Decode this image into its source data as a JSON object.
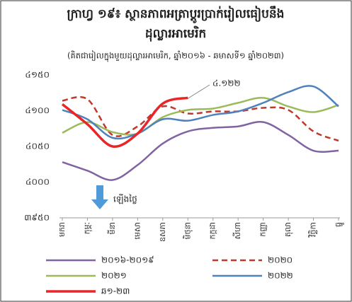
{
  "chart_data": {
    "type": "line",
    "title": "ក្រាហ្វ ១៩៖ ស្ថានភាពអត្រាប្តូរប្រាក់រៀលធៀបនឹង",
    "title_line2": "ដុល្លារអាមេរិក",
    "subtitle": "(គិតជារៀលក្នុងមួយដុល្លារអាមេរិក, ឆ្នាំ២០១៦ - ឆមាសទី១ ឆ្នាំ២០២៣)",
    "annotations": [
      "៤.១២២",
      "ឡើងថ្លៃ"
    ],
    "categories": [
      "មករា",
      "កុម្ភៈ",
      "មីនា",
      "មេសា",
      "ឧសភា",
      "មិថុនា",
      "កក្កដា",
      "សីហា",
      "កញ្ញា",
      "តុលា",
      "វិច្ឆិកា",
      "ធ្នូ"
    ],
    "series": [
      {
        "name": "២០១៦-២០១៩",
        "color": "#8064a2",
        "dash": false,
        "values": [
          4028,
          4016,
          4003,
          4024,
          4054,
          4071,
          4076,
          4078,
          4084,
          4066,
          4044,
          4044
        ]
      },
      {
        "name": "២០២០",
        "color": "#c0392b",
        "dash": true,
        "values": [
          4114,
          4116,
          4066,
          4078,
          4106,
          4096,
          4099,
          4099,
          4104,
          4101,
          4071,
          4058
        ]
      },
      {
        "name": "២០២១",
        "color": "#9bbb59",
        "dash": false,
        "values": [
          4069,
          4084,
          4070,
          4068,
          4091,
          4101,
          4103,
          4111,
          4118,
          4106,
          4098,
          4108
        ]
      },
      {
        "name": "២០២២",
        "color": "#4f81bd",
        "dash": false,
        "values": [
          4101,
          4088,
          4062,
          4068,
          4088,
          4086,
          4094,
          4099,
          4111,
          4126,
          4134,
          4106
        ]
      },
      {
        "name": "ឆ១-២៣",
        "color": "#e8262a",
        "dash": false,
        "values": [
          4109,
          4081,
          4050,
          4068,
          4110,
          4118,
          null,
          null,
          null,
          null,
          null,
          null
        ]
      }
    ],
    "ylim": [
      3950,
      4150
    ],
    "yticks": [
      {
        "value": 3950,
        "label": "៣៩៥០"
      },
      {
        "value": 4000,
        "label": "៤០០០"
      },
      {
        "value": 4050,
        "label": "៤០៥០"
      },
      {
        "value": 4100,
        "label": "៤១០០"
      },
      {
        "value": 4150,
        "label": "៤១៥០"
      }
    ],
    "grid": false
  }
}
